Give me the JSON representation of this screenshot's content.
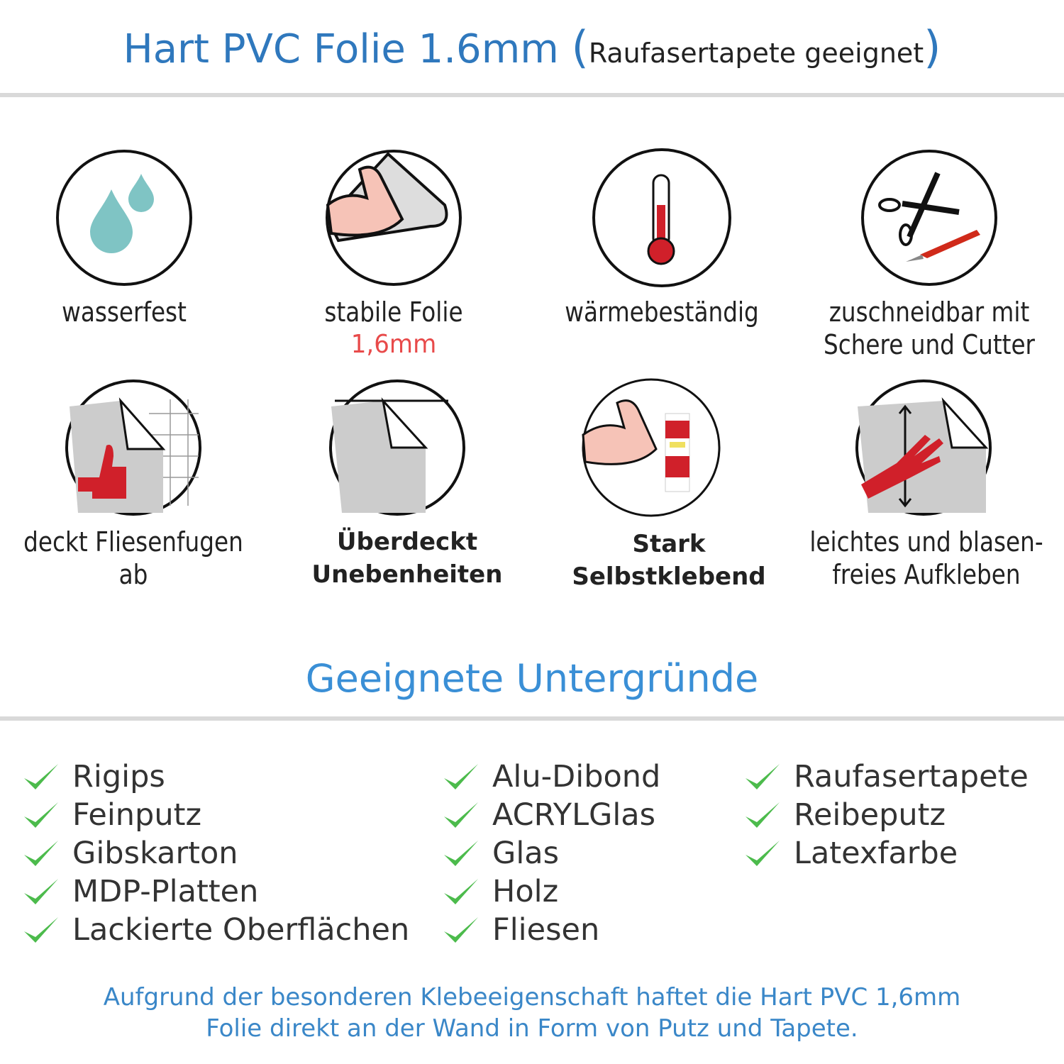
{
  "header": {
    "title": "Hart PVC Folie 1.6mm",
    "subtitle": "Raufasertapete geeignet",
    "paren_open": "(",
    "paren_close": ")"
  },
  "features": [
    {
      "label": "wasserfest",
      "icon": "water-drops-icon"
    },
    {
      "label": "stabile Folie",
      "sublabel": "1,6mm",
      "icon": "strong-arm-foil-icon"
    },
    {
      "label": "wärmebeständig",
      "icon": "thermometer-icon"
    },
    {
      "label": "zuschneidbar mit Schere und Cutter",
      "icon": "scissors-cutter-icon"
    },
    {
      "label": "deckt Fliesenfugen ab",
      "icon": "thumbs-up-tiles-icon"
    },
    {
      "label": "Überdeckt Unebenheiten",
      "icon": "foil-corner-icon"
    },
    {
      "label": "Stark Selbstklebend",
      "icon": "strong-arm-glue-icon"
    },
    {
      "label": "leichtes und blasen-freies Aufkleben",
      "icon": "hand-smoothing-icon"
    }
  ],
  "surfaces": {
    "heading": "Geeignete Untergründe",
    "columns": [
      [
        "Rigips",
        "Feinputz",
        "Gibskarton",
        "MDP-Platten",
        "Lackierte Oberflächen"
      ],
      [
        "Alu-Dibond",
        "ACRYLGlas",
        "Glas",
        "Holz",
        "Fliesen"
      ],
      [
        "Raufasertapete",
        "Reibeputz",
        "Latexfarbe"
      ]
    ]
  },
  "footer": {
    "line1": "Aufgrund der besonderen Klebeeigenschaft haftet die Hart PVC 1,6mm",
    "line2": "Folie direkt an der Wand in Form von Putz und Tapete."
  },
  "colors": {
    "title": "#2f78bd",
    "heading": "#3a8fd6",
    "check": "#4cbb4c",
    "accent_red": "#e84a4a"
  }
}
